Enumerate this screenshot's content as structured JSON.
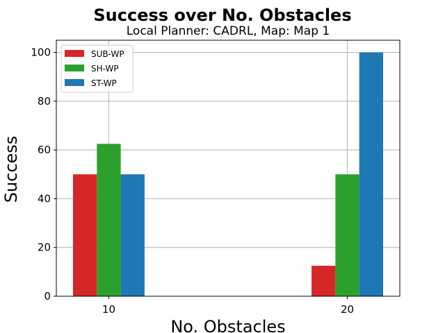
{
  "chart_data": {
    "type": "bar",
    "title": "Success over No. Obstacles",
    "subtitle": "Local Planner: CADRL, Map: Map 1",
    "xlabel": "No. Obstacles",
    "ylabel": "Success",
    "x": [
      10,
      20
    ],
    "xticks": [
      "10",
      "20"
    ],
    "xlim": [
      7.8,
      22.2
    ],
    "ylim": [
      0,
      105
    ],
    "yticks": [
      0,
      20,
      40,
      60,
      80,
      100
    ],
    "grid": true,
    "legend_position": "top-left",
    "bar_width": 1,
    "series": [
      {
        "name": "SUB-WP",
        "color": "#d62728",
        "values": [
          50,
          12.5
        ]
      },
      {
        "name": "SH-WP",
        "color": "#2ca02c",
        "values": [
          62.5,
          50
        ]
      },
      {
        "name": "ST-WP",
        "color": "#1f77b4",
        "values": [
          50,
          100
        ]
      }
    ]
  }
}
